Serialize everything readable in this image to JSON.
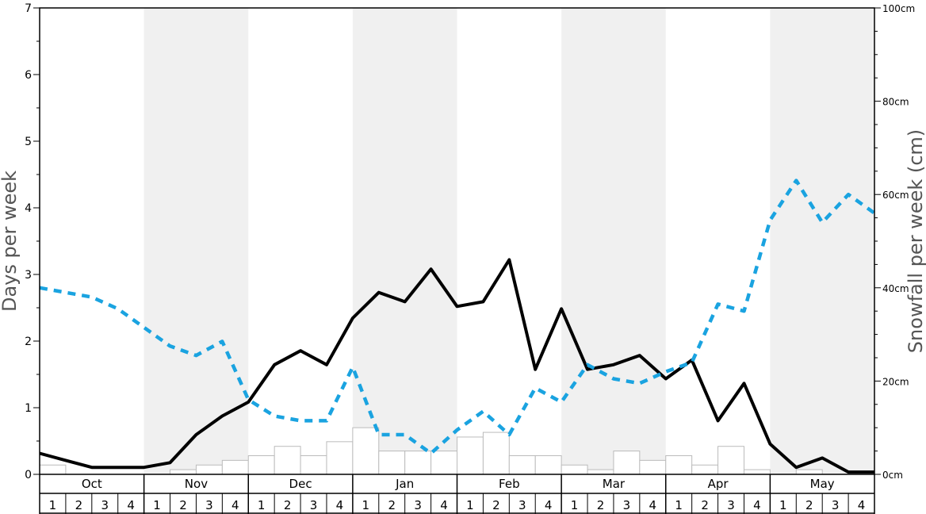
{
  "chart_data": {
    "type": "bar+line",
    "months": [
      "Oct",
      "Nov",
      "Dec",
      "Jan",
      "Feb",
      "Mar",
      "Apr",
      "May"
    ],
    "week_labels": [
      "1",
      "2",
      "3",
      "4"
    ],
    "ylabel_left": "Days per week",
    "ylabel_right": "Snowfall per week (cm)",
    "ylim_left": [
      0,
      7
    ],
    "yticks_left": [
      "0",
      "1",
      "2",
      "3",
      "4",
      "5",
      "6",
      "7"
    ],
    "ylim_right_cm": [
      0,
      100
    ],
    "yticks_right": [
      "0cm",
      "20cm",
      "40cm",
      "60cm",
      "80cm",
      "100cm"
    ],
    "series": [
      {
        "kind": "bars",
        "units": "days per week",
        "color": "#ffffff",
        "values": [
          0.14,
          0,
          0,
          0,
          0,
          0.07,
          0.14,
          0.21,
          0.28,
          0.42,
          0.28,
          0.49,
          0.7,
          0.35,
          0.35,
          0.35,
          0.56,
          0.63,
          0.28,
          0.28,
          0.14,
          0.07,
          0.35,
          0.21,
          0.28,
          0.14,
          0.42,
          0.07,
          0,
          0.07,
          0,
          0
        ]
      },
      {
        "kind": "line",
        "units": "cm per week",
        "color": "#000000",
        "values": [
          4.5,
          3,
          1.5,
          1.5,
          1.5,
          2.5,
          8.5,
          12.5,
          15.5,
          23.5,
          26.5,
          23.5,
          33.5,
          39,
          37,
          44,
          36,
          37,
          46,
          22.5,
          35.5,
          22.5,
          23.5,
          25.5,
          20.5,
          24.5,
          11.5,
          19.5,
          6.5,
          1.5,
          3.5,
          0.5,
          0.5
        ]
      },
      {
        "kind": "line-dashed",
        "units": "cm per week",
        "color": "#1aa3e0",
        "values": [
          40,
          39,
          38,
          35.5,
          31.5,
          27.5,
          25.5,
          28.5,
          16,
          12.5,
          11.5,
          11.5,
          23,
          8.5,
          8.5,
          4.5,
          9.5,
          13.5,
          8.5,
          18.5,
          15.5,
          23.5,
          20.5,
          19.5,
          22,
          24,
          36.5,
          35,
          54.5,
          63,
          54,
          60,
          56
        ]
      }
    ],
    "grid": false,
    "shaded_bands": [
      "Nov",
      "Jan",
      "Mar",
      "May"
    ],
    "band_color": "#f0f0f0"
  }
}
